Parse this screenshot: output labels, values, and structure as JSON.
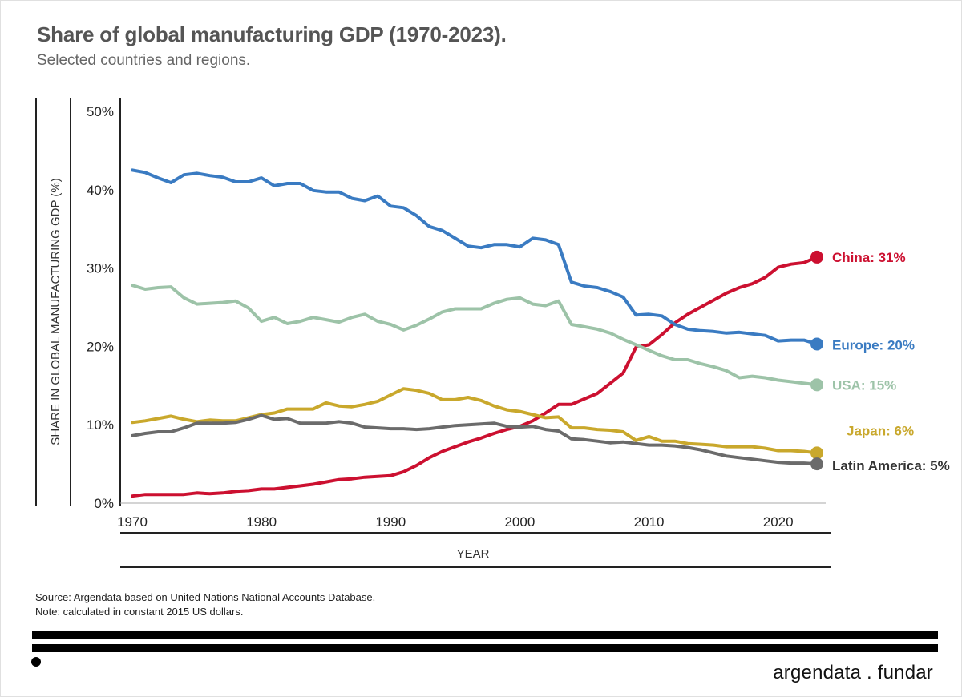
{
  "brand": "argendata . fundar",
  "source": "Source: Argendata based on United Nations National Accounts Database.",
  "note": "Note: calculated in constant 2015 US dollars.",
  "chart_data": {
    "type": "line",
    "title": "Share of global manufacturing GDP (1970-2023).",
    "subtitle": "Selected countries and regions.",
    "xlabel": "YEAR",
    "ylabel": "SHARE IN GLOBAL MANUFACTURING GDP (%)",
    "xlim": [
      1970,
      2023
    ],
    "ylim": [
      0,
      50
    ],
    "x_ticks": [
      1970,
      1980,
      1990,
      2000,
      2010,
      2020
    ],
    "y_ticks": [
      0,
      10,
      20,
      30,
      40,
      50
    ],
    "y_tick_labels": [
      "0%",
      "10%",
      "20%",
      "30%",
      "40%",
      "50%"
    ],
    "grid": false,
    "legend": "end-of-line labels (right)",
    "x": [
      1970,
      1971,
      1972,
      1973,
      1974,
      1975,
      1976,
      1977,
      1978,
      1979,
      1980,
      1981,
      1982,
      1983,
      1984,
      1985,
      1986,
      1987,
      1988,
      1989,
      1990,
      1991,
      1992,
      1993,
      1994,
      1995,
      1996,
      1997,
      1998,
      1999,
      2000,
      2001,
      2002,
      2003,
      2004,
      2005,
      2006,
      2007,
      2008,
      2009,
      2010,
      2011,
      2012,
      2013,
      2014,
      2015,
      2016,
      2017,
      2018,
      2019,
      2020,
      2021,
      2022,
      2023
    ],
    "series": [
      {
        "name": "China",
        "label": "China: 31%",
        "color": "#cc1030",
        "values": [
          0.9,
          1.1,
          1.1,
          1.1,
          1.1,
          1.3,
          1.2,
          1.3,
          1.5,
          1.6,
          1.8,
          1.8,
          2.0,
          2.2,
          2.4,
          2.7,
          3.0,
          3.1,
          3.3,
          3.4,
          3.5,
          4.0,
          4.8,
          5.8,
          6.6,
          7.2,
          7.8,
          8.3,
          8.9,
          9.4,
          9.8,
          10.5,
          11.5,
          12.6,
          12.6,
          13.3,
          14.0,
          15.3,
          16.6,
          19.9,
          20.2,
          21.5,
          23.0,
          24.1,
          25.0,
          25.9,
          26.8,
          27.5,
          28.0,
          28.8,
          30.1,
          30.5,
          30.7,
          31.4
        ]
      },
      {
        "name": "Europe",
        "label": "Europe: 20%",
        "color": "#3a7bc2",
        "values": [
          42.5,
          42.2,
          41.5,
          40.9,
          41.9,
          42.1,
          41.8,
          41.6,
          41.0,
          41.0,
          41.5,
          40.5,
          40.8,
          40.8,
          39.9,
          39.7,
          39.7,
          38.9,
          38.6,
          39.2,
          37.9,
          37.7,
          36.7,
          35.3,
          34.8,
          33.8,
          32.8,
          32.6,
          33.0,
          33.0,
          32.7,
          33.8,
          33.6,
          33.0,
          28.2,
          27.7,
          27.5,
          27.0,
          26.3,
          24.0,
          24.1,
          23.9,
          22.8,
          22.2,
          22.0,
          21.9,
          21.7,
          21.8,
          21.6,
          21.4,
          20.7,
          20.8,
          20.8,
          20.3
        ]
      },
      {
        "name": "USA",
        "label": "USA: 15%",
        "color": "#9dc3a8",
        "values": [
          27.8,
          27.3,
          27.5,
          27.6,
          26.2,
          25.4,
          25.5,
          25.6,
          25.8,
          24.9,
          23.2,
          23.7,
          22.9,
          23.2,
          23.7,
          23.4,
          23.1,
          23.7,
          24.1,
          23.2,
          22.8,
          22.1,
          22.7,
          23.5,
          24.4,
          24.8,
          24.8,
          24.8,
          25.5,
          26.0,
          26.2,
          25.4,
          25.2,
          25.8,
          22.8,
          22.5,
          22.2,
          21.7,
          20.9,
          20.2,
          19.5,
          18.8,
          18.3,
          18.3,
          17.8,
          17.4,
          16.9,
          16.0,
          16.2,
          16.0,
          15.7,
          15.5,
          15.3,
          15.1
        ]
      },
      {
        "name": "Japan",
        "label": "Japan: 6%",
        "color": "#c9a82c",
        "values": [
          10.3,
          10.5,
          10.8,
          11.1,
          10.7,
          10.4,
          10.6,
          10.5,
          10.5,
          10.9,
          11.3,
          11.5,
          12.0,
          12.0,
          12.0,
          12.8,
          12.4,
          12.3,
          12.6,
          13.0,
          13.8,
          14.6,
          14.4,
          14.0,
          13.2,
          13.2,
          13.5,
          13.1,
          12.4,
          11.9,
          11.7,
          11.3,
          10.9,
          11.0,
          9.6,
          9.6,
          9.4,
          9.3,
          9.1,
          8.0,
          8.5,
          7.9,
          7.9,
          7.6,
          7.5,
          7.4,
          7.2,
          7.2,
          7.2,
          7.0,
          6.7,
          6.7,
          6.6,
          6.4
        ]
      },
      {
        "name": "Latin America",
        "label": "Latin America: 5%",
        "color": "#6b6b6b",
        "values": [
          8.6,
          8.9,
          9.1,
          9.1,
          9.6,
          10.2,
          10.2,
          10.2,
          10.3,
          10.7,
          11.2,
          10.7,
          10.8,
          10.2,
          10.2,
          10.2,
          10.4,
          10.2,
          9.7,
          9.6,
          9.5,
          9.5,
          9.4,
          9.5,
          9.7,
          9.9,
          10.0,
          10.1,
          10.2,
          9.8,
          9.7,
          9.8,
          9.4,
          9.2,
          8.2,
          8.1,
          7.9,
          7.7,
          7.8,
          7.6,
          7.4,
          7.4,
          7.3,
          7.1,
          6.8,
          6.4,
          6.0,
          5.8,
          5.6,
          5.4,
          5.2,
          5.1,
          5.1,
          5.0
        ]
      }
    ]
  }
}
